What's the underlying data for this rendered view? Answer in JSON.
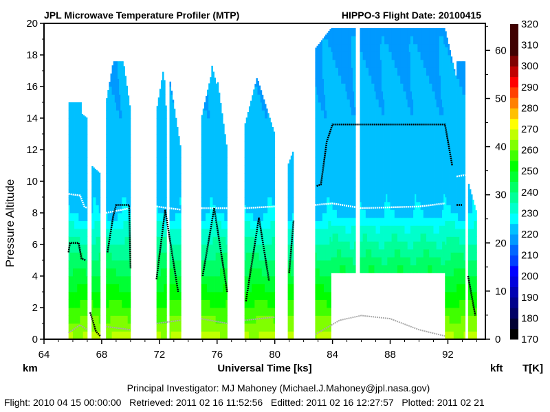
{
  "chart_data": {
    "type": "heatmap",
    "title": "JPL Microwave Temperature Profiler (MTP)",
    "subtitle": "HIPPO-3  Flight Date: 20100415",
    "xlabel": "Universal Time [ks]",
    "ylabel": "Pressure Altitude",
    "y_unit_left": "km",
    "y_unit_right": "kft",
    "colorbar_label": "T[K]",
    "xlim": [
      64,
      94.6
    ],
    "ylim": [
      0,
      20
    ],
    "x_ticks": [
      "64",
      "68",
      "72",
      "76",
      "80",
      "84",
      "88",
      "92"
    ],
    "y_ticks": [
      "0",
      "2",
      "4",
      "6",
      "8",
      "10",
      "12",
      "14",
      "16",
      "18",
      "20"
    ],
    "y2_ticks": [
      "0",
      "10",
      "20",
      "30",
      "40",
      "50",
      "60"
    ],
    "colorbar_ticks": [
      "170",
      "180",
      "190",
      "200",
      "210",
      "220",
      "230",
      "240",
      "250",
      "260",
      "270",
      "280",
      "290",
      "300",
      "310",
      "320"
    ],
    "colorbar_range": [
      170,
      320
    ],
    "colorbar_colors": [
      "#000000",
      "#000033",
      "#000066",
      "#00008c",
      "#0000b3",
      "#0000dd",
      "#0000ff",
      "#0040ff",
      "#0066ff",
      "#0099ff",
      "#00c0ff",
      "#00ffff",
      "#00ffcc",
      "#00ff99",
      "#00ff66",
      "#00ff33",
      "#00ff00",
      "#40ff00",
      "#80ff00",
      "#c0ff00",
      "#ffff00",
      "#ffc000",
      "#ff8000",
      "#ff4000",
      "#ff0000",
      "#c00000",
      "#800000",
      "#400000",
      "#400000",
      "#400000"
    ],
    "temperature_profile": {
      "altitude_km": [
        0,
        1,
        2,
        3,
        4,
        5,
        6,
        7,
        8,
        12,
        16,
        19.7
      ],
      "temperature_K": [
        267,
        262,
        256,
        251,
        246,
        241,
        236,
        231,
        224,
        222,
        221,
        218
      ]
    },
    "curtain_segments": [
      {
        "t0": 65.7,
        "t1": 66.6,
        "top0": 15.0,
        "top1": 15.0,
        "bottom": 0
      },
      {
        "t0": 66.6,
        "t1": 67.0,
        "top0": 14.3,
        "top1": 14.0,
        "bottom": 0
      },
      {
        "t0": 67.3,
        "t1": 67.9,
        "top0": 11.0,
        "top1": 10.5,
        "bottom": 0
      },
      {
        "t0": 68.3,
        "t1": 68.8,
        "top0": 15.0,
        "top1": 17.6,
        "bottom": 0
      },
      {
        "t0": 68.8,
        "t1": 69.5,
        "top0": 17.6,
        "top1": 17.6,
        "bottom": 0
      },
      {
        "t0": 69.5,
        "t1": 70.0,
        "top0": 17.6,
        "top1": 14.5,
        "bottom": 0
      },
      {
        "t0": 71.8,
        "t1": 72.3,
        "top0": 14.5,
        "top1": 17.2,
        "bottom": 0
      },
      {
        "t0": 72.3,
        "t1": 72.5,
        "top0": 17.2,
        "top1": 14.0,
        "bottom": 0
      },
      {
        "t0": 72.7,
        "t1": 73.5,
        "top0": 16.6,
        "top1": 12.0,
        "bottom": 0
      },
      {
        "t0": 74.9,
        "t1": 75.6,
        "top0": 14.0,
        "top1": 16.8,
        "bottom": 0
      },
      {
        "t0": 75.6,
        "t1": 76.0,
        "top0": 17.5,
        "top1": 16.0,
        "bottom": 0
      },
      {
        "t0": 76.0,
        "t1": 76.7,
        "top0": 16.6,
        "top1": 12.0,
        "bottom": 0
      },
      {
        "t0": 77.9,
        "t1": 78.8,
        "top0": 13.5,
        "top1": 16.7,
        "bottom": 0
      },
      {
        "t0": 78.8,
        "t1": 80.0,
        "top0": 16.5,
        "top1": 13.0,
        "bottom": 0
      },
      {
        "t0": 80.9,
        "t1": 81.3,
        "top0": 11.0,
        "top1": 12.0,
        "bottom": 0
      },
      {
        "t0": 82.8,
        "t1": 83.9,
        "top0": 18.4,
        "top1": 19.7,
        "bottom": 0
      },
      {
        "t0": 83.9,
        "t1": 85.6,
        "top0": 19.7,
        "top1": 19.7,
        "bottom": 4.2
      },
      {
        "t0": 85.9,
        "t1": 91.8,
        "top0": 19.7,
        "top1": 19.7,
        "bottom": 4.2
      },
      {
        "t0": 91.8,
        "t1": 92.6,
        "top0": 19.7,
        "top1": 16.5,
        "bottom": 0
      },
      {
        "t0": 92.6,
        "t1": 93.2,
        "top0": 17.6,
        "top1": 17.6,
        "bottom": 0
      },
      {
        "t0": 93.4,
        "t1": 94.0,
        "top0": 10.0,
        "top1": 8.0,
        "bottom": 0
      }
    ],
    "flight_altitude_km": [
      [
        [
          65.7,
          5.5
        ],
        [
          65.8,
          6.1
        ],
        [
          66.4,
          6.1
        ],
        [
          66.6,
          5.1
        ],
        [
          66.9,
          5.0
        ]
      ],
      [
        [
          67.2,
          1.7
        ],
        [
          67.6,
          0.5
        ],
        [
          67.9,
          0.2
        ]
      ],
      [
        [
          68.4,
          5.5
        ],
        [
          68.8,
          7.8
        ],
        [
          69.0,
          8.5
        ],
        [
          69.9,
          8.5
        ],
        [
          70.0,
          4.5
        ]
      ],
      [
        [
          71.8,
          3.8
        ],
        [
          72.4,
          8.2
        ],
        [
          73.3,
          3.0
        ]
      ],
      [
        [
          75.0,
          4.0
        ],
        [
          75.8,
          8.3
        ],
        [
          76.7,
          3.0
        ]
      ],
      [
        [
          78.0,
          2.4
        ],
        [
          78.9,
          7.7
        ],
        [
          79.6,
          3.7
        ]
      ],
      [
        [
          81.0,
          4.2
        ],
        [
          81.3,
          7.5
        ]
      ],
      [
        [
          82.9,
          9.7
        ],
        [
          83.2,
          9.8
        ],
        [
          83.6,
          12.5
        ],
        [
          84.0,
          13.6
        ],
        [
          91.8,
          13.6
        ],
        [
          92.3,
          11.0
        ]
      ],
      [
        [
          92.6,
          8.5
        ],
        [
          93.0,
          8.5
        ]
      ],
      [
        [
          93.4,
          4.0
        ],
        [
          93.9,
          1.5
        ]
      ]
    ],
    "tropopause_km": [
      [
        [
          65.7,
          9.2
        ],
        [
          66.5,
          9.1
        ],
        [
          66.8,
          8.4
        ],
        [
          67.0,
          8.3
        ]
      ],
      [
        [
          68.3,
          8.0
        ],
        [
          70.0,
          8.3
        ]
      ],
      [
        [
          71.8,
          8.4
        ],
        [
          73.5,
          8.2
        ]
      ],
      [
        [
          74.9,
          8.3
        ],
        [
          76.7,
          8.3
        ]
      ],
      [
        [
          77.9,
          8.3
        ],
        [
          80.0,
          8.4
        ]
      ],
      [
        [
          82.8,
          8.5
        ],
        [
          84.0,
          8.6
        ],
        [
          86.0,
          8.3
        ],
        [
          90.0,
          8.4
        ],
        [
          91.8,
          8.6
        ]
      ],
      [
        [
          92.6,
          10.3
        ],
        [
          93.2,
          10.4
        ]
      ]
    ],
    "surface_km": [
      [
        [
          65.7,
          0.4
        ],
        [
          66.5,
          0.9
        ],
        [
          67.0,
          0.6
        ]
      ],
      [
        [
          68.3,
          0.8
        ],
        [
          70.0,
          0.6
        ]
      ],
      [
        [
          71.8,
          1.0
        ],
        [
          73.5,
          1.2
        ]
      ],
      [
        [
          74.9,
          1.3
        ],
        [
          76.7,
          1.0
        ]
      ],
      [
        [
          77.9,
          1.2
        ],
        [
          80.0,
          1.4
        ]
      ],
      [
        [
          82.8,
          0.3
        ],
        [
          84.5,
          1.2
        ],
        [
          86.0,
          1.5
        ],
        [
          88.0,
          1.3
        ],
        [
          90.0,
          0.6
        ],
        [
          91.8,
          0.2
        ]
      ]
    ]
  },
  "footer": {
    "investigator": "Principal Investigator: MJ Mahoney (Michael.J.Mahoney@jpl.nasa.gov)",
    "dates": "Flight: 2010 04 15 00:00:00   Retrieved: 2011 02 16 11:52:56   Editted: 2011 02 16 12:27:57   Plotted: 2011 02 21"
  },
  "colors": {
    "flight_line": "#000000",
    "tropopause": "#ffffff",
    "surface": "#aaaaaa"
  }
}
